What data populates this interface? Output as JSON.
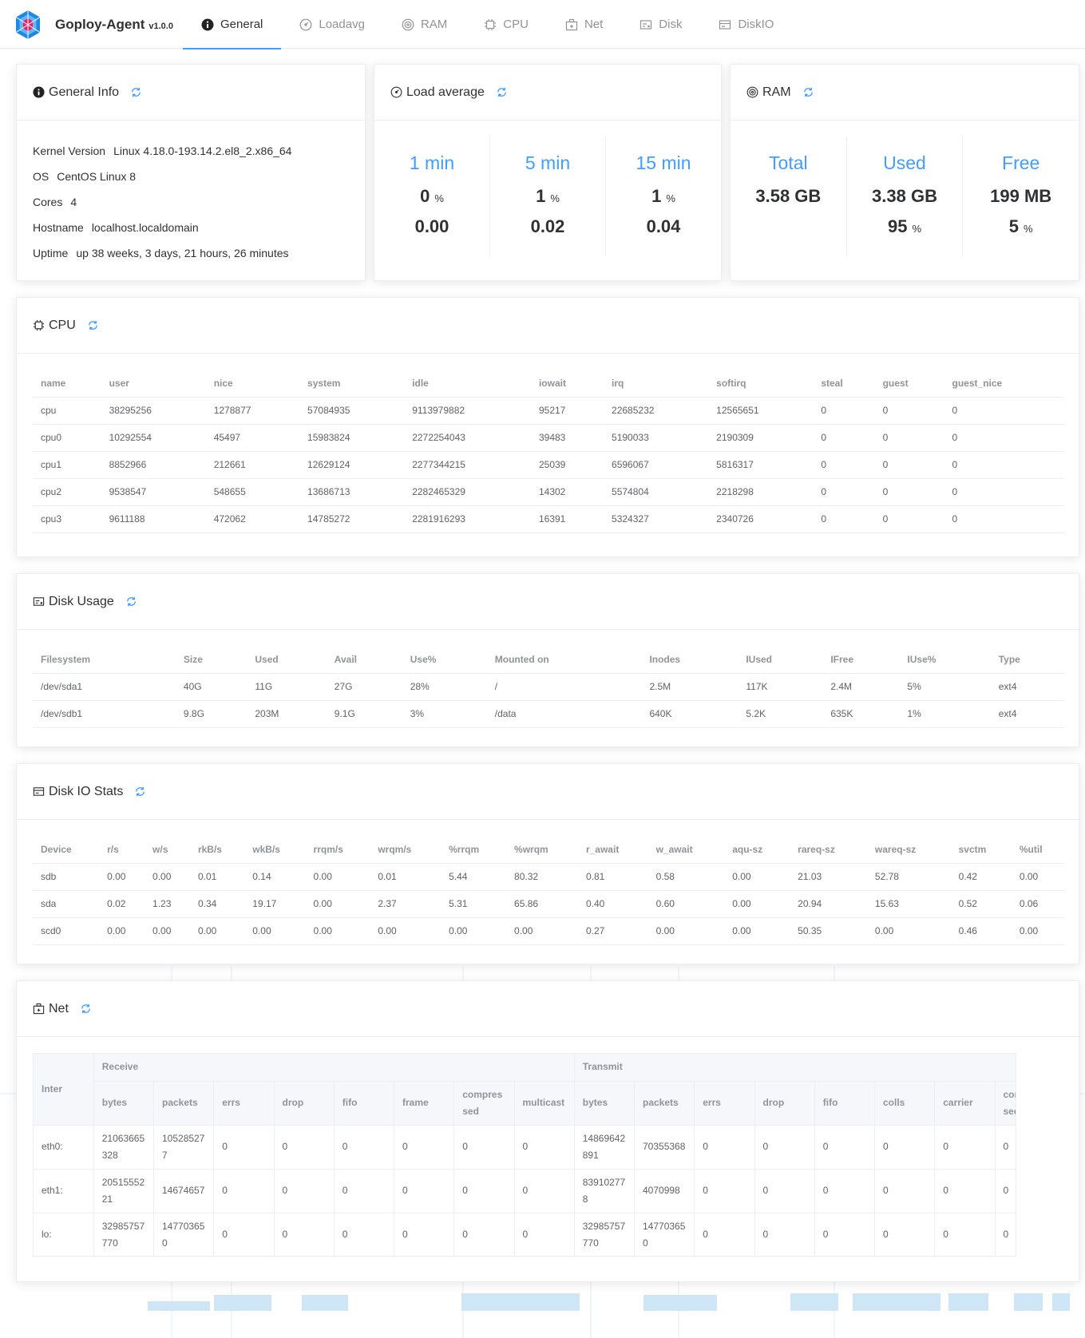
{
  "app": {
    "name": "Goploy-Agent",
    "version": "v1.0.0"
  },
  "nav": {
    "items": [
      {
        "label": "General",
        "icon": "info-icon",
        "active": true
      },
      {
        "label": "Loadavg",
        "icon": "gauge-icon"
      },
      {
        "label": "RAM",
        "icon": "ram-icon"
      },
      {
        "label": "CPU",
        "icon": "cpu-icon"
      },
      {
        "label": "Net",
        "icon": "net-icon"
      },
      {
        "label": "Disk",
        "icon": "disk-icon"
      },
      {
        "label": "DiskIO",
        "icon": "diskio-icon"
      }
    ]
  },
  "general": {
    "title": "General Info",
    "rows": [
      {
        "label": "Kernel Version",
        "value": "Linux 4.18.0-193.14.2.el8_2.x86_64"
      },
      {
        "label": "OS",
        "value": "CentOS Linux 8"
      },
      {
        "label": "Cores",
        "value": "4"
      },
      {
        "label": "Hostname",
        "value": "localhost.localdomain"
      },
      {
        "label": "Uptime",
        "value": "up 38 weeks, 3 days, 21 hours, 26 minutes"
      }
    ]
  },
  "loadavg": {
    "title": "Load average",
    "cols": [
      {
        "label": "1 min",
        "percent": "0",
        "unit": "%",
        "value": "0.00"
      },
      {
        "label": "5 min",
        "percent": "1",
        "unit": "%",
        "value": "0.02"
      },
      {
        "label": "15 min",
        "percent": "1",
        "unit": "%",
        "value": "0.04"
      }
    ]
  },
  "ram": {
    "title": "RAM",
    "cols": [
      {
        "label": "Total",
        "value": "3.58 GB",
        "percent": "",
        "unit": ""
      },
      {
        "label": "Used",
        "value": "3.38 GB",
        "percent": "95",
        "unit": "%"
      },
      {
        "label": "Free",
        "value": "199 MB",
        "percent": "5",
        "unit": "%"
      }
    ]
  },
  "cpu": {
    "title": "CPU",
    "columns": [
      "name",
      "user",
      "nice",
      "system",
      "idle",
      "iowait",
      "irq",
      "softirq",
      "steal",
      "guest",
      "guest_nice"
    ],
    "rows": [
      [
        "cpu",
        "38295256",
        "1278877",
        "57084935",
        "9113979882",
        "95217",
        "22685232",
        "12565651",
        "0",
        "0",
        "0"
      ],
      [
        "cpu0",
        "10292554",
        "45497",
        "15983824",
        "2272254043",
        "39483",
        "5190033",
        "2190309",
        "0",
        "0",
        "0"
      ],
      [
        "cpu1",
        "8852966",
        "212661",
        "12629124",
        "2277344215",
        "25039",
        "6596067",
        "5816317",
        "0",
        "0",
        "0"
      ],
      [
        "cpu2",
        "9538547",
        "548655",
        "13686713",
        "2282465329",
        "14302",
        "5574804",
        "2218298",
        "0",
        "0",
        "0"
      ],
      [
        "cpu3",
        "9611188",
        "472062",
        "14785272",
        "2281916293",
        "16391",
        "5324327",
        "2340726",
        "0",
        "0",
        "0"
      ]
    ]
  },
  "disk": {
    "title": "Disk Usage",
    "columns": [
      "Filesystem",
      "Size",
      "Used",
      "Avail",
      "Use%",
      "Mounted on",
      "Inodes",
      "IUsed",
      "IFree",
      "IUse%",
      "Type"
    ],
    "rows": [
      [
        "/dev/sda1",
        "40G",
        "11G",
        "27G",
        "28%",
        "/",
        "2.5M",
        "117K",
        "2.4M",
        "5%",
        "ext4"
      ],
      [
        "/dev/sdb1",
        "9.8G",
        "203M",
        "9.1G",
        "3%",
        "/data",
        "640K",
        "5.2K",
        "635K",
        "1%",
        "ext4"
      ]
    ]
  },
  "diskio": {
    "title": "Disk IO Stats",
    "columns": [
      "Device",
      "r/s",
      "w/s",
      "rkB/s",
      "wkB/s",
      "rrqm/s",
      "wrqm/s",
      "%rrqm",
      "%wrqm",
      "r_await",
      "w_await",
      "aqu-sz",
      "rareq-sz",
      "wareq-sz",
      "svctm",
      "%util"
    ],
    "rows": [
      [
        "sdb",
        "0.00",
        "0.00",
        "0.01",
        "0.14",
        "0.00",
        "0.01",
        "5.44",
        "80.32",
        "0.81",
        "0.58",
        "0.00",
        "21.03",
        "52.78",
        "0.42",
        "0.00"
      ],
      [
        "sda",
        "0.02",
        "1.23",
        "0.34",
        "19.17",
        "0.00",
        "2.37",
        "5.31",
        "65.86",
        "0.40",
        "0.60",
        "0.00",
        "20.94",
        "15.63",
        "0.52",
        "0.06"
      ],
      [
        "scd0",
        "0.00",
        "0.00",
        "0.00",
        "0.00",
        "0.00",
        "0.00",
        "0.00",
        "0.00",
        "0.27",
        "0.00",
        "0.00",
        "50.35",
        "0.00",
        "0.46",
        "0.00"
      ]
    ]
  },
  "net": {
    "title": "Net",
    "inter_label": "Inter",
    "receive_label": "Receive",
    "transmit_label": "Transmit",
    "receive_columns": [
      "bytes",
      "packets",
      "errs",
      "drop",
      "fifo",
      "frame",
      "compressed",
      "multicast"
    ],
    "transmit_columns": [
      "bytes",
      "packets",
      "errs",
      "drop",
      "fifo",
      "colls",
      "carrier",
      "compressed"
    ],
    "rows": [
      [
        "eth0:",
        "21063665328",
        "105285277",
        "0",
        "0",
        "0",
        "0",
        "0",
        "0",
        "14869642891",
        "70355368",
        "0",
        "0",
        "0",
        "0",
        "0",
        "0"
      ],
      [
        "eth1:",
        "2051555221",
        "14674657",
        "0",
        "0",
        "0",
        "0",
        "0",
        "0",
        "839102778",
        "4070998",
        "0",
        "0",
        "0",
        "0",
        "0",
        "0"
      ],
      [
        "lo:",
        "32985757770",
        "147703650",
        "0",
        "0",
        "0",
        "0",
        "0",
        "0",
        "32985757770",
        "147703650",
        "0",
        "0",
        "0",
        "0",
        "0",
        "0"
      ]
    ]
  },
  "colors": {
    "accent": "#409eff",
    "text": "#303133",
    "muted": "#909399",
    "border": "#ebeef5"
  }
}
